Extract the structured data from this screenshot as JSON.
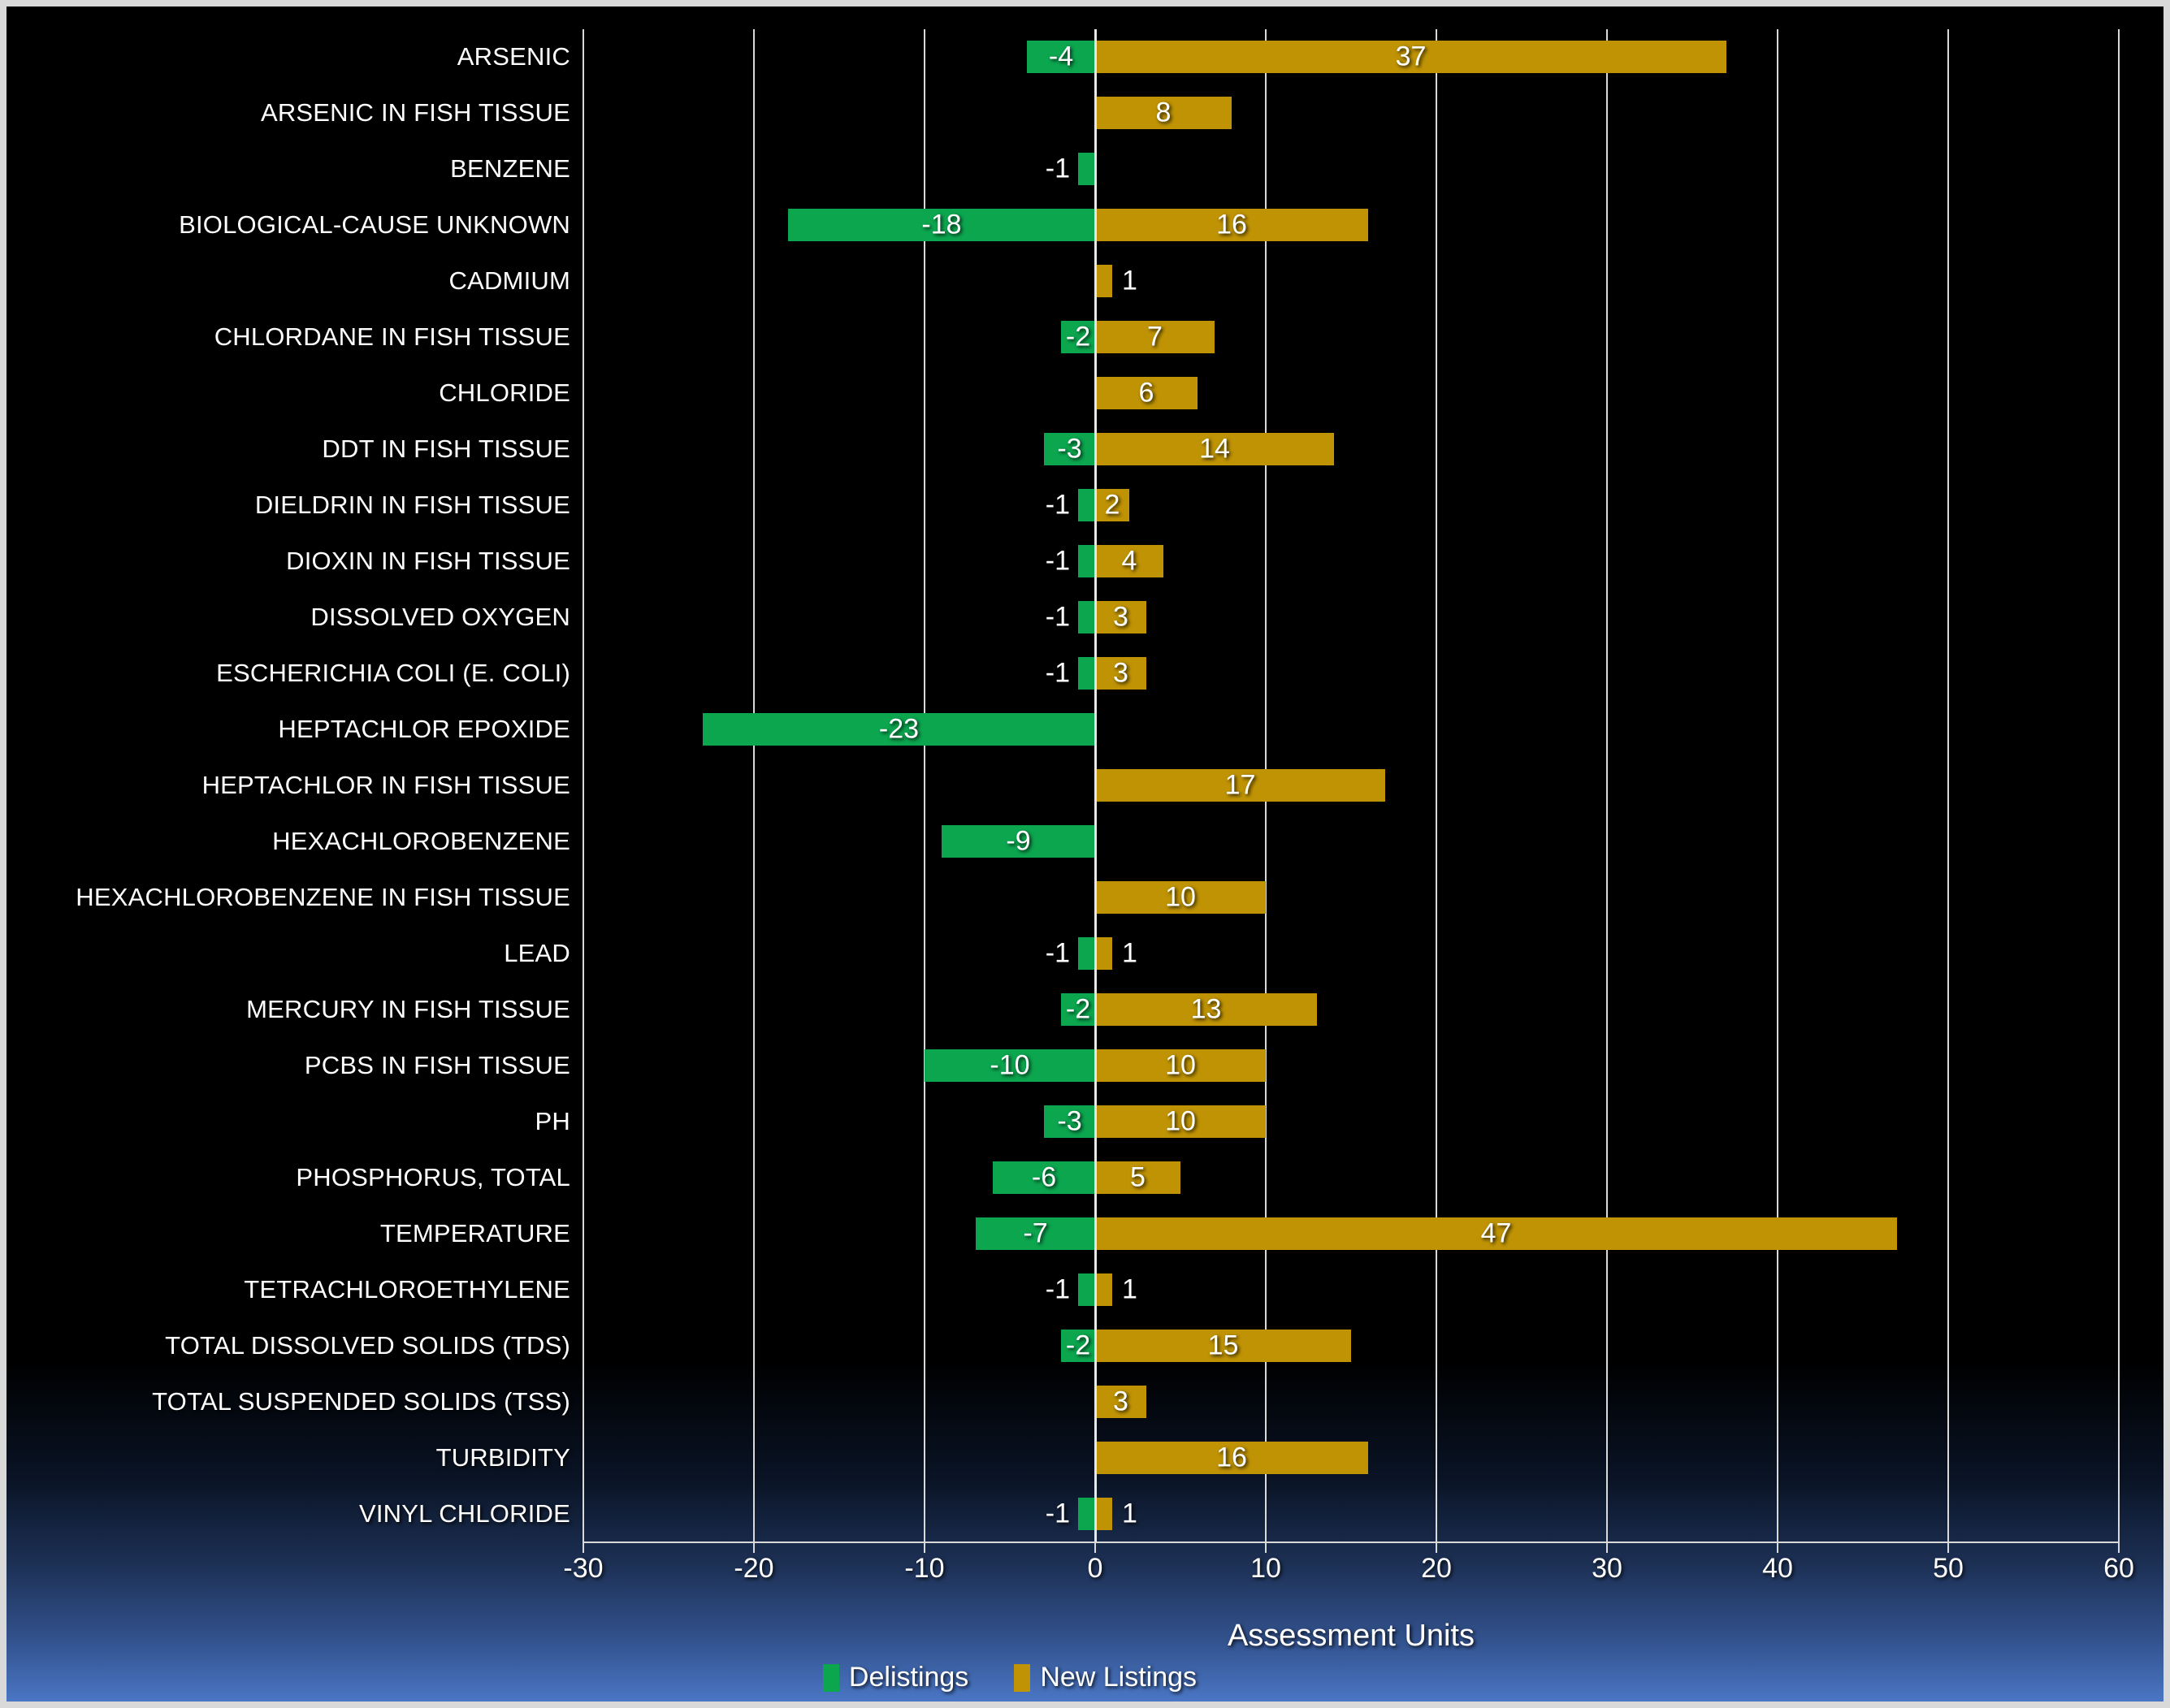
{
  "chart_data": {
    "type": "bar",
    "orientation": "horizontal",
    "title": "",
    "xlabel": "Assessment Units",
    "xlim": [
      -30,
      60
    ],
    "x_ticks": [
      -30,
      -20,
      -10,
      0,
      10,
      20,
      30,
      40,
      50,
      60
    ],
    "grid": true,
    "legend_position": "bottom",
    "categories": [
      "ARSENIC",
      "ARSENIC IN FISH TISSUE",
      "BENZENE",
      "BIOLOGICAL-CAUSE UNKNOWN",
      "CADMIUM",
      "CHLORDANE IN FISH TISSUE",
      "CHLORIDE",
      "DDT IN FISH TISSUE",
      "DIELDRIN IN FISH TISSUE",
      "DIOXIN IN FISH TISSUE",
      "DISSOLVED OXYGEN",
      "ESCHERICHIA COLI (E. COLI)",
      "HEPTACHLOR EPOXIDE",
      "HEPTACHLOR IN FISH TISSUE",
      "HEXACHLOROBENZENE",
      "HEXACHLOROBENZENE IN FISH TISSUE",
      "LEAD",
      "MERCURY IN FISH TISSUE",
      "PCBS IN FISH TISSUE",
      "PH",
      "PHOSPHORUS, TOTAL",
      "TEMPERATURE",
      "TETRACHLOROETHYLENE",
      "TOTAL DISSOLVED SOLIDS (TDS)",
      "TOTAL SUSPENDED SOLIDS (TSS)",
      "TURBIDITY",
      "VINYL CHLORIDE"
    ],
    "series": [
      {
        "name": "Delistings",
        "color": "#0ca64f",
        "values": [
          -4,
          null,
          -1,
          -18,
          null,
          -2,
          null,
          -3,
          -1,
          -1,
          -1,
          -1,
          -23,
          null,
          -9,
          null,
          -1,
          -2,
          -10,
          -3,
          -6,
          -7,
          -1,
          -2,
          null,
          null,
          -1
        ]
      },
      {
        "name": "New Listings",
        "color": "#bf9304",
        "values": [
          37,
          8,
          null,
          16,
          1,
          7,
          6,
          14,
          2,
          4,
          3,
          3,
          null,
          17,
          null,
          10,
          1,
          13,
          10,
          10,
          5,
          47,
          1,
          15,
          3,
          16,
          1
        ]
      }
    ]
  },
  "style": {
    "gridline_color": "#d9d9d9",
    "text_color": "#ffffff",
    "background_top": "#000000",
    "background_bottom": "#4a76c4",
    "frame_border_color": "#d9d9d9"
  }
}
